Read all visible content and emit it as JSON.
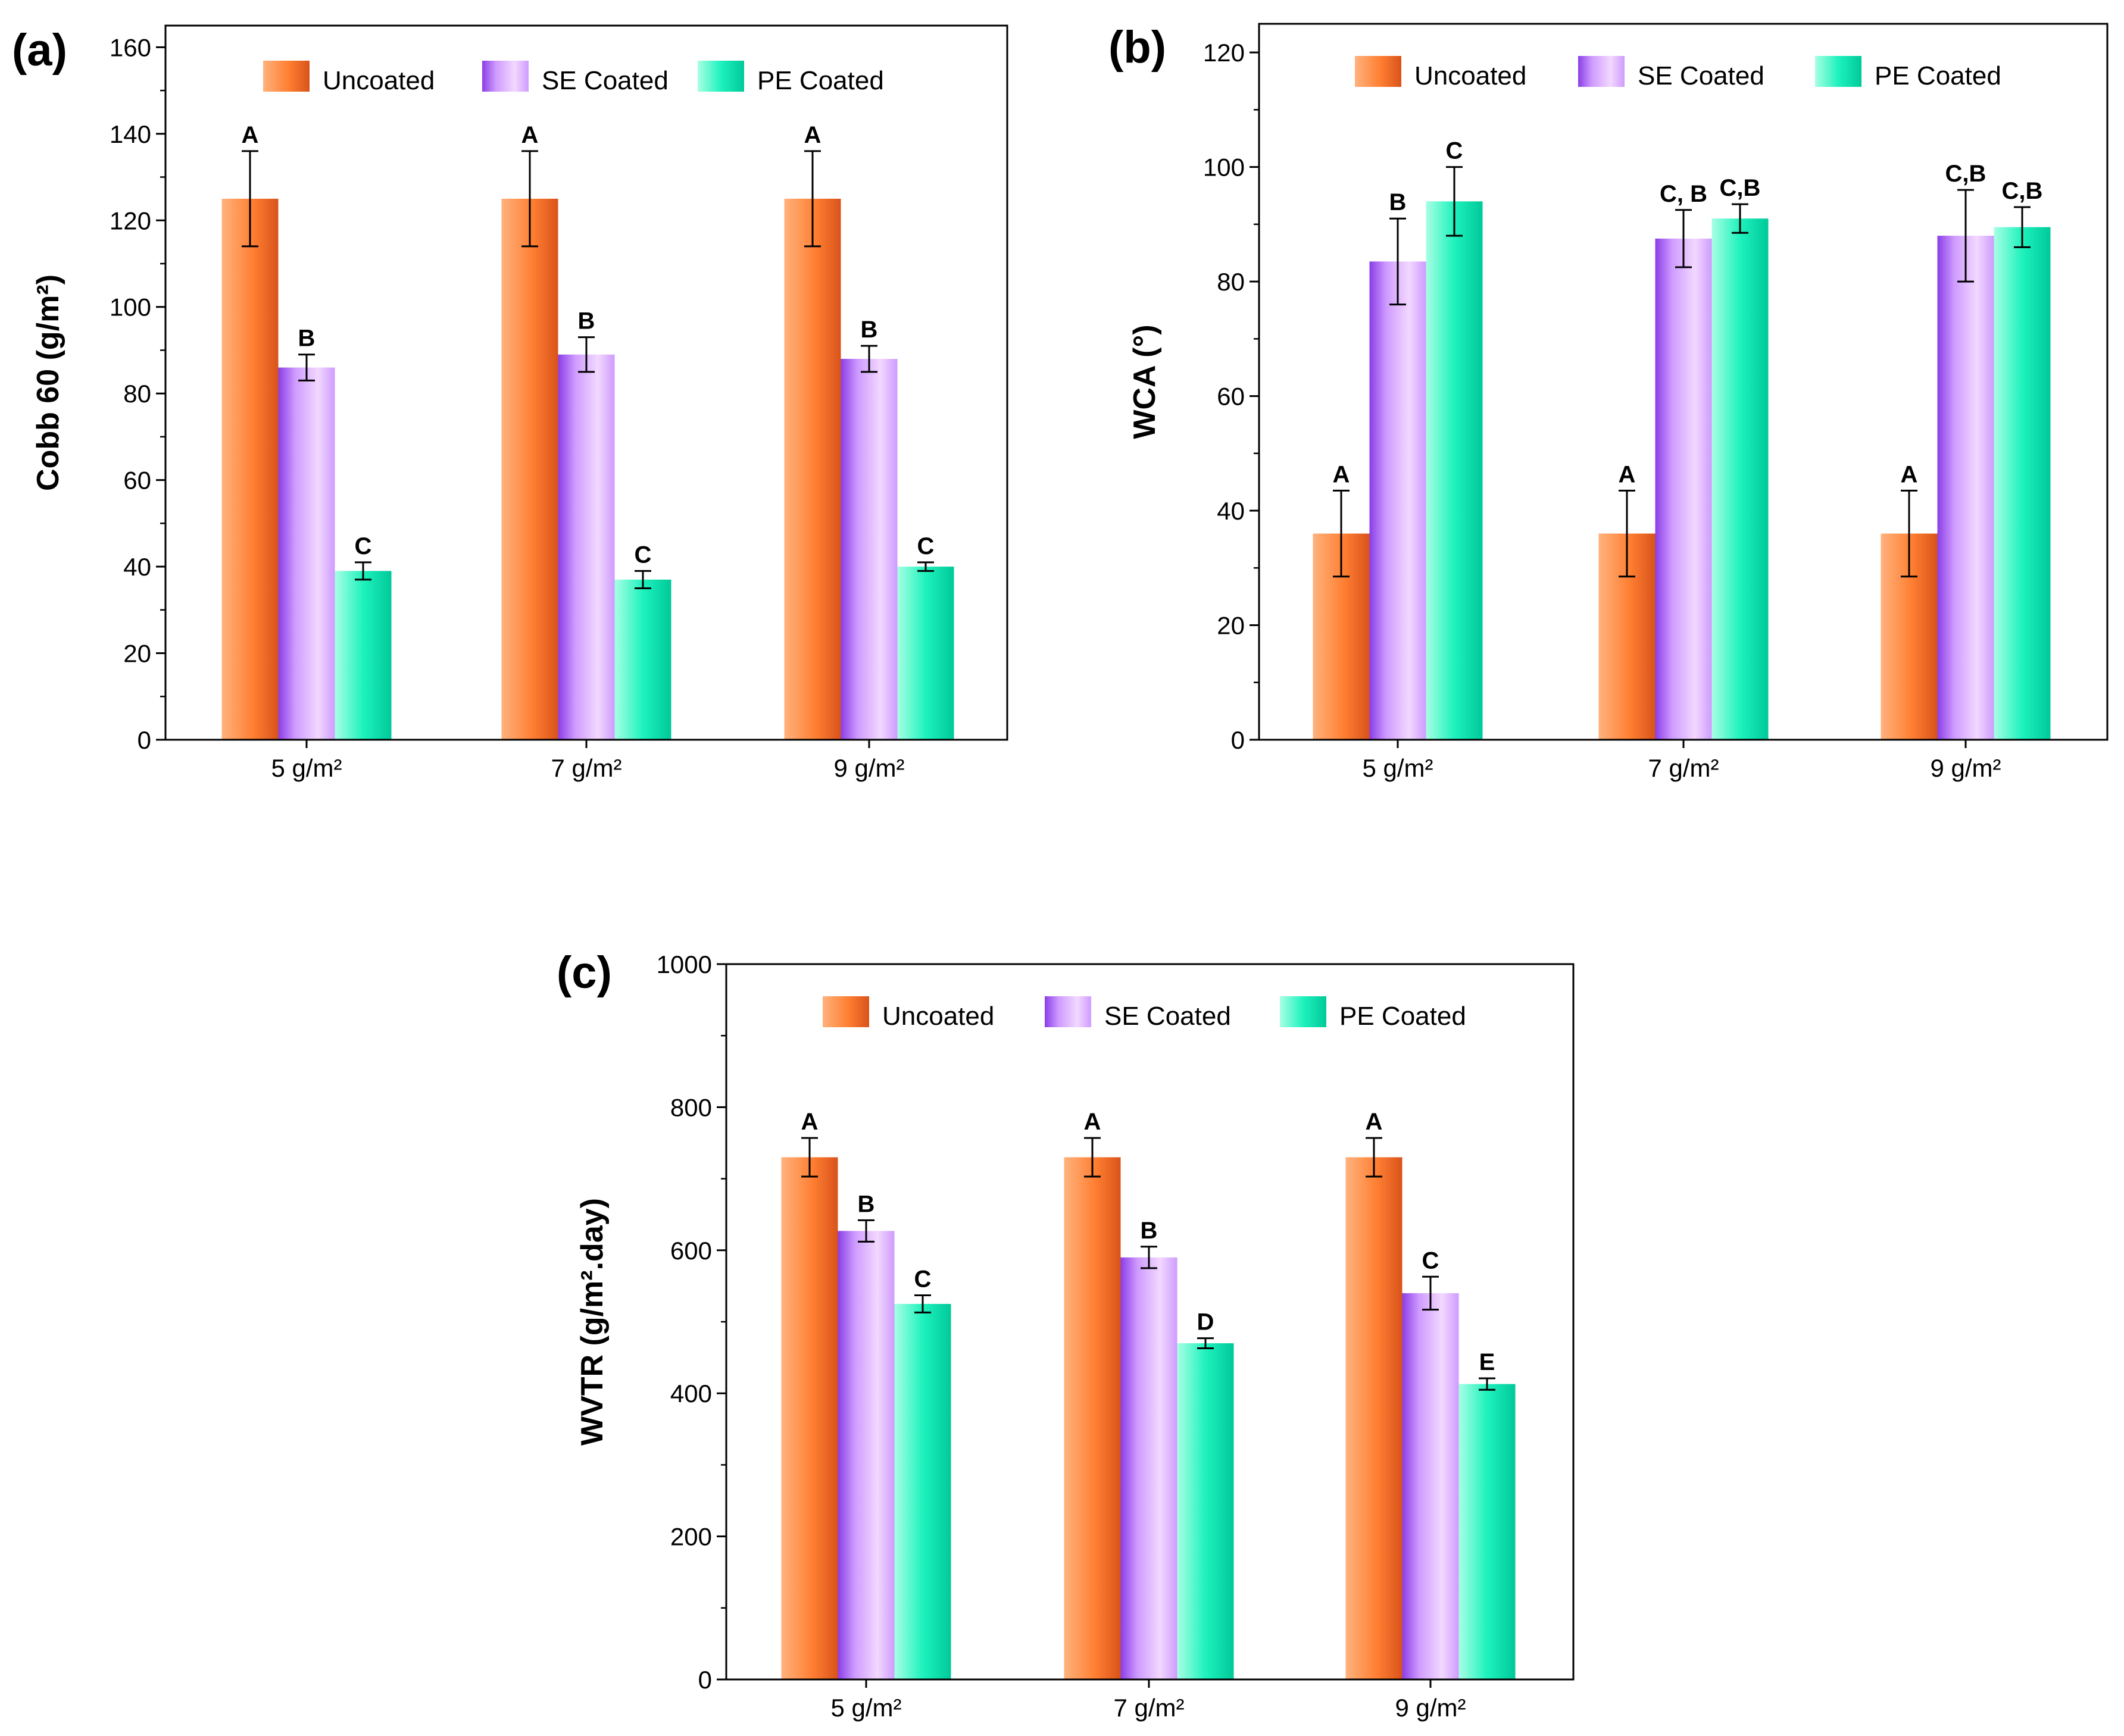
{
  "figure": {
    "legend": [
      "Uncoated",
      "SE Coated",
      "PE Coated"
    ],
    "series_colors": {
      "Uncoated": {
        "light": "#ffb27d",
        "mid": "#ff7f32",
        "dark": "#d9531a"
      },
      "SE Coated": {
        "light": "#f2d8ff",
        "mid": "#cf9bff",
        "dark": "#8a3ee6"
      },
      "PE Coated": {
        "light": "#a8ffe4",
        "mid": "#1ef2bd",
        "dark": "#00c99a"
      }
    }
  },
  "chart_data": [
    {
      "id": "a",
      "panel_label": "(a)",
      "type": "bar",
      "categories": [
        "5 g/m²",
        "7 g/m²",
        "9 g/m²"
      ],
      "ylabel": "Cobb 60 (g/m²)",
      "ylim": [
        0,
        165
      ],
      "yticks": [
        0,
        20,
        40,
        60,
        80,
        100,
        120,
        140,
        160
      ],
      "legend_position": "top",
      "series": [
        {
          "name": "Uncoated",
          "values": [
            125,
            125,
            125
          ],
          "errors": [
            11,
            11,
            11
          ],
          "labels": [
            "A",
            "A",
            "A"
          ]
        },
        {
          "name": "SE Coated",
          "values": [
            86,
            89,
            88
          ],
          "errors": [
            3,
            4,
            3
          ],
          "labels": [
            "B",
            "B",
            "B"
          ]
        },
        {
          "name": "PE Coated",
          "values": [
            39,
            37,
            40
          ],
          "errors": [
            2,
            2,
            1
          ],
          "labels": [
            "C",
            "C",
            "C"
          ]
        }
      ]
    },
    {
      "id": "b",
      "panel_label": "(b)",
      "type": "bar",
      "categories": [
        "5 g/m²",
        "7 g/m²",
        "9 g/m²"
      ],
      "ylabel": "WCA (°)",
      "ylim": [
        0,
        125
      ],
      "yticks": [
        0,
        20,
        40,
        60,
        80,
        100,
        120
      ],
      "legend_position": "top",
      "series": [
        {
          "name": "Uncoated",
          "values": [
            36,
            36,
            36
          ],
          "errors": [
            7.5,
            7.5,
            7.5
          ],
          "labels": [
            "A",
            "A",
            "A"
          ]
        },
        {
          "name": "SE Coated",
          "values": [
            83.5,
            87.5,
            88
          ],
          "errors": [
            7.5,
            5,
            8
          ],
          "labels": [
            "B",
            "C, B",
            "C,B"
          ]
        },
        {
          "name": "PE Coated",
          "values": [
            94,
            91,
            89.5
          ],
          "errors": [
            6,
            2.5,
            3.5
          ],
          "labels": [
            "C",
            "C,B",
            "C,B"
          ]
        }
      ]
    },
    {
      "id": "c",
      "panel_label": "(c)",
      "type": "bar",
      "categories": [
        "5 g/m²",
        "7 g/m²",
        "9 g/m²"
      ],
      "ylabel": "WVTR (g/m².day)",
      "ylim": [
        0,
        1000
      ],
      "yticks": [
        0,
        200,
        400,
        600,
        800,
        1000
      ],
      "legend_position": "top",
      "series": [
        {
          "name": "Uncoated",
          "values": [
            730,
            730,
            730
          ],
          "errors": [
            27,
            27,
            27
          ],
          "labels": [
            "A",
            "A",
            "A"
          ]
        },
        {
          "name": "SE Coated",
          "values": [
            627,
            590,
            540
          ],
          "errors": [
            15,
            15,
            23
          ],
          "labels": [
            "B",
            "B",
            "C"
          ]
        },
        {
          "name": "PE Coated",
          "values": [
            525,
            470,
            413
          ],
          "errors": [
            12,
            7,
            8
          ],
          "labels": [
            "C",
            "D",
            "E"
          ]
        }
      ]
    }
  ]
}
